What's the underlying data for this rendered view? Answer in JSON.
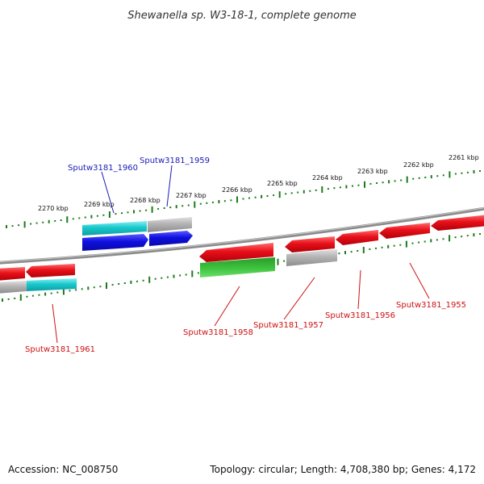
{
  "title": "Shewanella sp. W3-18-1, complete genome",
  "footer": {
    "accession": "Accession: NC_008750",
    "topology": "Topology: circular; Length: 4,708,380 bp; Genes: 4,172"
  },
  "scale_labels": [
    "2270 kbp",
    "2269 kbp",
    "2268 kbp",
    "2267 kbp",
    "2266 kbp",
    "2265 kbp",
    "2264 kbp",
    "2263 kbp",
    "2262 kbp",
    "2261 kbp"
  ],
  "gene_labels": [
    {
      "text": "Sputw3181_1960",
      "strand": "forward"
    },
    {
      "text": "Sputw3181_1959",
      "strand": "forward"
    },
    {
      "text": "Sputw3181_1961",
      "strand": "reverse"
    },
    {
      "text": "Sputw3181_1958",
      "strand": "reverse"
    },
    {
      "text": "Sputw3181_1957",
      "strand": "reverse"
    },
    {
      "text": "Sputw3181_1956",
      "strand": "reverse"
    },
    {
      "text": "Sputw3181_1955",
      "strand": "reverse"
    }
  ],
  "colors": {
    "forward_label": "#1a1ab8",
    "reverse_label": "#cc1111",
    "backbone": "#8a8a8a",
    "scale_tick": "#1b7a1b",
    "red_gene": "#e8101a",
    "blue_gene": "#1010e0",
    "cyan_gene": "#18c8cc",
    "green_gene": "#2aa82a",
    "gray_gene": "#b4b4b4"
  }
}
